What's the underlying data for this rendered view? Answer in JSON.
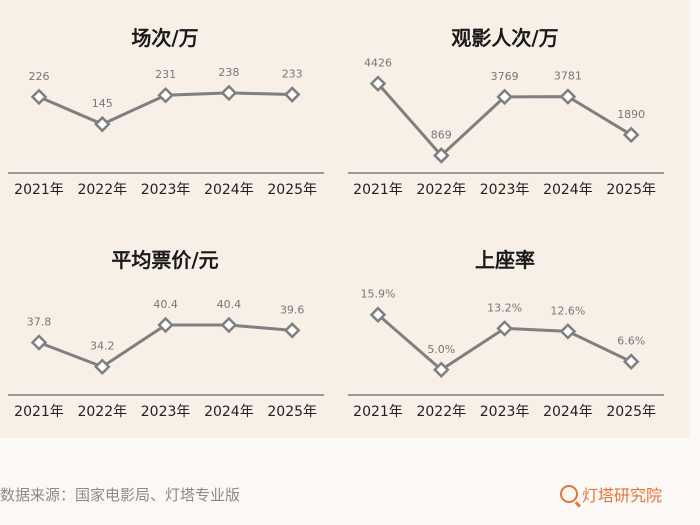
{
  "chart_data": [
    {
      "type": "line",
      "title": "场次/万",
      "categories": [
        "2021年",
        "2022年",
        "2023年",
        "2024年",
        "2025年"
      ],
      "values": [
        226,
        145,
        231,
        238,
        233
      ],
      "labels": [
        "226",
        "145",
        "231",
        "238",
        "233"
      ],
      "ylim": [
        0,
        300
      ],
      "grid": false
    },
    {
      "type": "line",
      "title": "观影人次/万",
      "categories": [
        "2021年",
        "2022年",
        "2023年",
        "2024年",
        "2025年"
      ],
      "values": [
        4426,
        869,
        3769,
        3781,
        1890
      ],
      "labels": [
        "4426",
        "869",
        "3769",
        "3781",
        "1890"
      ],
      "ylim": [
        0,
        5000
      ],
      "grid": false
    },
    {
      "type": "line",
      "title": "平均票价/元",
      "categories": [
        "2021年",
        "2022年",
        "2023年",
        "2024年",
        "2025年"
      ],
      "values": [
        37.8,
        34.2,
        40.4,
        40.4,
        39.6
      ],
      "labels": [
        "37.8",
        "34.2",
        "40.4",
        "40.4",
        "39.6"
      ],
      "ylim": [
        30,
        45
      ],
      "grid": false
    },
    {
      "type": "line",
      "title": "上座率",
      "categories": [
        "2021年",
        "2022年",
        "2023年",
        "2024年",
        "2025年"
      ],
      "values": [
        15.9,
        5.0,
        13.2,
        12.6,
        6.6
      ],
      "labels": [
        "15.9%",
        "5.0%",
        "13.2%",
        "12.6%",
        "6.6%"
      ],
      "ylim": [
        0,
        20
      ],
      "grid": false
    }
  ],
  "colors": {
    "line": "#7f7f7f",
    "marker_fill": "#ffffff",
    "background": "#f8efe7",
    "brand": "#e0763a"
  },
  "footer": {
    "source": "数据来源：国家电影局、灯塔专业版",
    "brand": "灯塔研究院"
  }
}
